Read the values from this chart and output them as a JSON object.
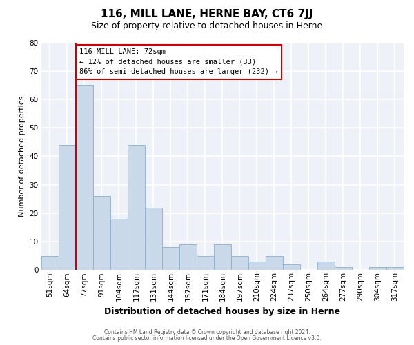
{
  "title": "116, MILL LANE, HERNE BAY, CT6 7JJ",
  "subtitle": "Size of property relative to detached houses in Herne",
  "xlabel": "Distribution of detached houses by size in Herne",
  "ylabel": "Number of detached properties",
  "footer_line1": "Contains HM Land Registry data © Crown copyright and database right 2024.",
  "footer_line2": "Contains public sector information licensed under the Open Government Licence v3.0.",
  "bin_labels": [
    "51sqm",
    "64sqm",
    "77sqm",
    "91sqm",
    "104sqm",
    "117sqm",
    "131sqm",
    "144sqm",
    "157sqm",
    "171sqm",
    "184sqm",
    "197sqm",
    "210sqm",
    "224sqm",
    "237sqm",
    "250sqm",
    "264sqm",
    "277sqm",
    "290sqm",
    "304sqm",
    "317sqm"
  ],
  "bar_heights": [
    5,
    44,
    65,
    26,
    18,
    44,
    22,
    8,
    9,
    5,
    9,
    5,
    3,
    5,
    2,
    0,
    3,
    1,
    0,
    1,
    1
  ],
  "bar_color": "#c9d9ea",
  "bar_edge_color": "#8ab0d0",
  "ylim": [
    0,
    80
  ],
  "yticks": [
    0,
    10,
    20,
    30,
    40,
    50,
    60,
    70,
    80
  ],
  "vline_color": "#cc0000",
  "annotation_line1": "116 MILL LANE: 72sqm",
  "annotation_line2": "← 12% of detached houses are smaller (33)",
  "annotation_line3": "86% of semi-detached houses are larger (232) →",
  "annotation_box_facecolor": "#ffffff",
  "annotation_box_edgecolor": "#cc0000",
  "bg_color": "#ffffff",
  "plot_bg_color": "#eef2f8",
  "grid_color": "#ffffff",
  "title_fontsize": 11,
  "subtitle_fontsize": 9,
  "xlabel_fontsize": 9,
  "ylabel_fontsize": 8,
  "tick_fontsize": 7.5
}
